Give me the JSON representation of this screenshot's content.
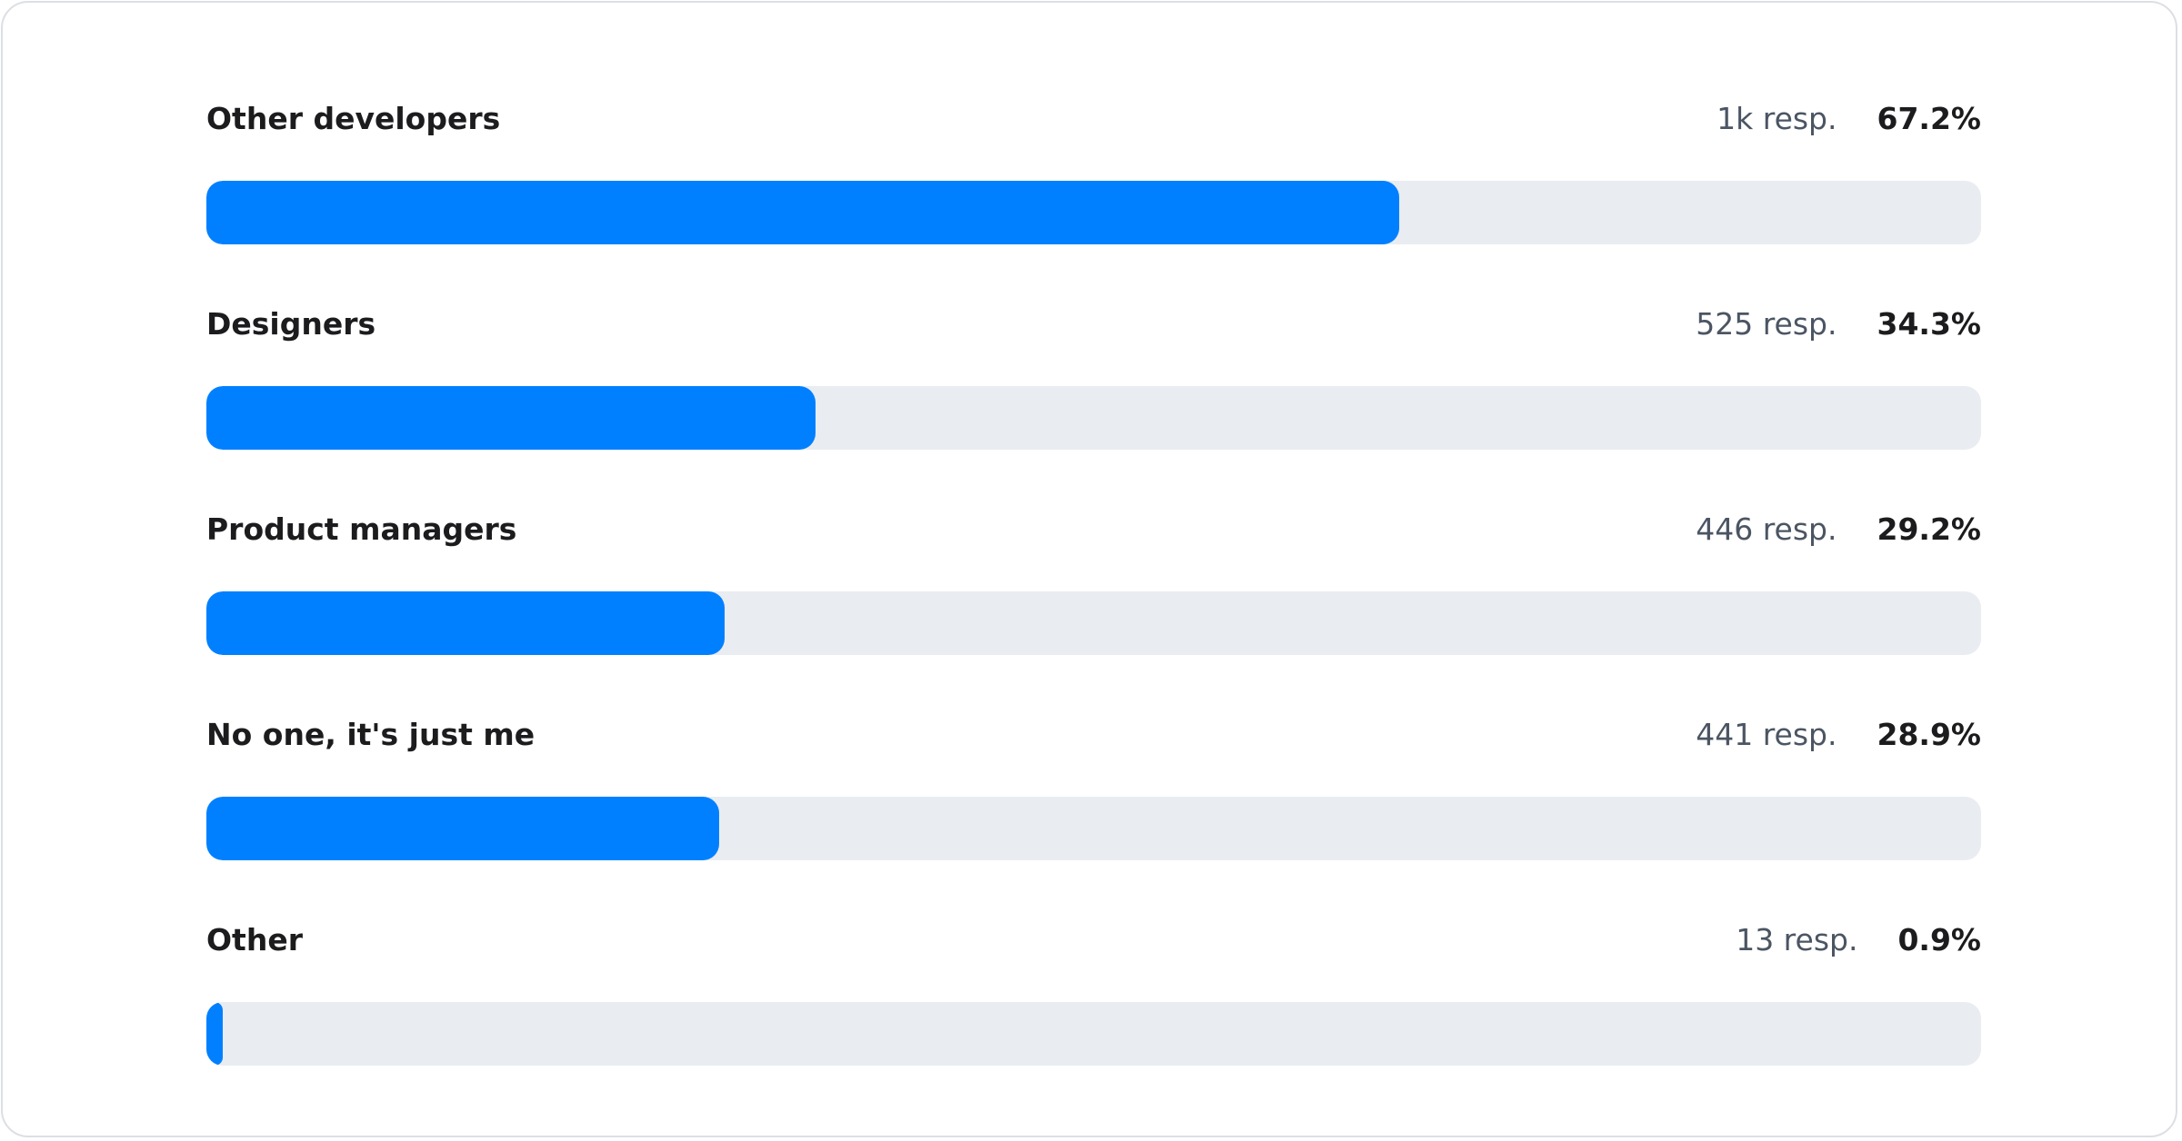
{
  "chart_data": {
    "type": "bar",
    "orientation": "horizontal",
    "categories": [
      "Other developers",
      "Designers",
      "Product managers",
      "No one, it's just me",
      "Other"
    ],
    "values": [
      67.2,
      34.3,
      29.2,
      28.9,
      0.9
    ],
    "responses": [
      "1k resp.",
      "525 resp.",
      "446 resp.",
      "441 resp.",
      "13 resp."
    ],
    "percent_labels": [
      "67.2%",
      "34.3%",
      "29.2%",
      "28.9%",
      "0.9%"
    ],
    "xlim": [
      0,
      100
    ],
    "grid": false,
    "colors": {
      "fill": "#0080ff",
      "track": "#e9ecf1"
    }
  }
}
